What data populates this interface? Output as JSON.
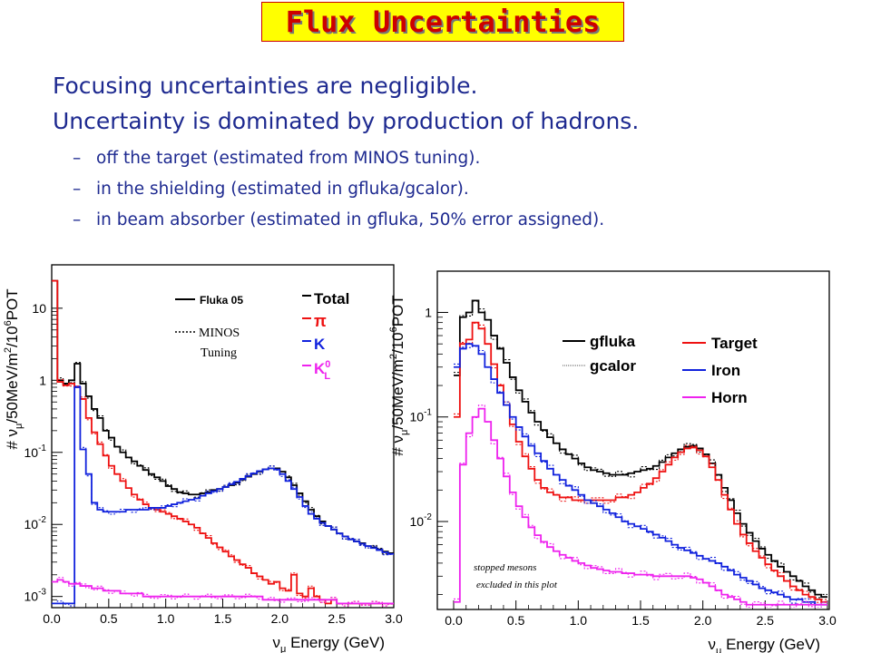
{
  "title": "Flux Uncertainties",
  "bullets": {
    "main": [
      "Focusing uncertainties are negligible.",
      "Uncertainty is dominated by production of hadrons."
    ],
    "sub": [
      "off the target (estimated from MINOS tuning).",
      "in the shielding (estimated in gfluka/gcalor).",
      "in beam absorber (estimated in gfluka, 50% error assigned)."
    ],
    "dash": "–"
  },
  "colors": {
    "total": "#000000",
    "pion": "#ee1111",
    "kaon": "#1122dd",
    "k0l": "#ee22ee",
    "target": "#ee1111",
    "iron": "#1122dd",
    "horn": "#ee22ee"
  },
  "chart_data": [
    {
      "type": "line",
      "xlabel": "νμ Energy (GeV)",
      "ylabel": "# νμ/50MeV/m²/10⁶POT",
      "y_log": true,
      "xlim": [
        0.0,
        3.0
      ],
      "ylim": [
        0.0007,
        40
      ],
      "x_ticks": [
        "0.0",
        "0.5",
        "1.0",
        "1.5",
        "2.0",
        "2.5",
        "3.0"
      ],
      "y_ticks": [
        "10",
        "1",
        "10⁻¹",
        "10⁻²",
        "10⁻³"
      ],
      "legend_style": {
        "solid": "Fluka 05",
        "dotted": "MINOS Tuning"
      },
      "legend": [
        "Total",
        "π",
        "K",
        "K⁰L"
      ],
      "x": [
        0.025,
        0.075,
        0.125,
        0.175,
        0.225,
        0.275,
        0.325,
        0.375,
        0.425,
        0.475,
        0.525,
        0.575,
        0.625,
        0.675,
        0.725,
        0.775,
        0.825,
        0.875,
        0.925,
        0.975,
        1.025,
        1.075,
        1.125,
        1.175,
        1.225,
        1.275,
        1.325,
        1.375,
        1.425,
        1.475,
        1.525,
        1.575,
        1.625,
        1.675,
        1.725,
        1.775,
        1.825,
        1.875,
        1.925,
        1.975,
        2.025,
        2.075,
        2.125,
        2.175,
        2.225,
        2.275,
        2.325,
        2.375,
        2.425,
        2.475,
        2.525,
        2.575,
        2.625,
        2.675,
        2.725,
        2.775,
        2.825,
        2.875,
        2.925,
        2.975
      ],
      "series": [
        {
          "name": "Total",
          "values": [
            24,
            1.0,
            0.9,
            1.0,
            1.7,
            0.9,
            0.6,
            0.4,
            0.3,
            0.2,
            0.16,
            0.12,
            0.1,
            0.085,
            0.075,
            0.065,
            0.057,
            0.05,
            0.045,
            0.04,
            0.034,
            0.031,
            0.028,
            0.027,
            0.026,
            0.026,
            0.027,
            0.028,
            0.03,
            0.031,
            0.033,
            0.035,
            0.038,
            0.042,
            0.046,
            0.05,
            0.054,
            0.058,
            0.06,
            0.06,
            0.054,
            0.045,
            0.035,
            0.027,
            0.021,
            0.016,
            0.013,
            0.011,
            0.0095,
            0.0085,
            0.0075,
            0.0068,
            0.0062,
            0.0058,
            0.0055,
            0.005,
            0.0048,
            0.0045,
            0.0042,
            0.004
          ]
        },
        {
          "name": "π",
          "values": [
            24,
            0.95,
            0.85,
            0.9,
            0.8,
            0.55,
            0.3,
            0.19,
            0.13,
            0.09,
            0.065,
            0.05,
            0.04,
            0.032,
            0.026,
            0.022,
            0.019,
            0.017,
            0.016,
            0.015,
            0.014,
            0.013,
            0.012,
            0.011,
            0.01,
            0.009,
            0.0075,
            0.0065,
            0.0055,
            0.0048,
            0.0042,
            0.0036,
            0.0032,
            0.0028,
            0.0025,
            0.0021,
            0.0019,
            0.0017,
            0.0015,
            0.0016,
            0.0013,
            0.0012,
            0.002,
            0.0011,
            0.001,
            0.0013,
            0.001,
            0.0009,
            0.0008,
            0.0009,
            0.0008,
            0.0008,
            0.0008,
            0.0008,
            0.0008,
            0.0008,
            0.0008,
            0.0008,
            0.0008,
            0.0008
          ]
        },
        {
          "name": "K",
          "values": [
            0.0008,
            0.0008,
            0.0008,
            0.0008,
            0.8,
            0.11,
            0.05,
            0.02,
            0.016,
            0.015,
            0.015,
            0.015,
            0.015,
            0.016,
            0.016,
            0.016,
            0.016,
            0.017,
            0.017,
            0.017,
            0.018,
            0.019,
            0.02,
            0.021,
            0.022,
            0.023,
            0.025,
            0.027,
            0.029,
            0.031,
            0.033,
            0.036,
            0.039,
            0.043,
            0.047,
            0.051,
            0.055,
            0.058,
            0.06,
            0.058,
            0.05,
            0.04,
            0.031,
            0.024,
            0.018,
            0.014,
            0.012,
            0.0105,
            0.0095,
            0.0085,
            0.0075,
            0.0068,
            0.0062,
            0.0058,
            0.0054,
            0.005,
            0.0047,
            0.0044,
            0.0041,
            0.0039
          ]
        },
        {
          "name": "K⁰L",
          "values": [
            0.0016,
            0.0017,
            0.0016,
            0.0015,
            0.0015,
            0.0014,
            0.0014,
            0.0013,
            0.0013,
            0.0012,
            0.0012,
            0.0012,
            0.0011,
            0.0011,
            0.0011,
            0.0011,
            0.001,
            0.001,
            0.001,
            0.001,
            0.001,
            0.001,
            0.001,
            0.001,
            0.001,
            0.001,
            0.001,
            0.001,
            0.001,
            0.001,
            0.001,
            0.001,
            0.001,
            0.001,
            0.001,
            0.001,
            0.001,
            0.0009,
            0.0009,
            0.0009,
            0.0009,
            0.0009,
            0.0009,
            0.0009,
            0.0009,
            0.0009,
            0.0009,
            0.0009,
            0.0009,
            0.0009,
            0.0008,
            0.0008,
            0.0008,
            0.0008,
            0.0008,
            0.0008,
            0.0008,
            0.0008,
            0.0008,
            0.0008
          ]
        }
      ]
    },
    {
      "type": "line",
      "xlabel": "νμ Energy (GeV)",
      "ylabel": "# νμ/50MeV/m²/10⁶POT",
      "y_log": true,
      "xlim": [
        0.0,
        3.0
      ],
      "ylim": [
        0.0015,
        2.2
      ],
      "x_ticks": [
        "0.0",
        "0.5",
        "1.0",
        "1.5",
        "2.0",
        "2.5",
        "3.0"
      ],
      "y_ticks": [
        "1",
        "10⁻¹",
        "10⁻²"
      ],
      "legend_style": {
        "solid": "gfluka",
        "dotted": "gcalor"
      },
      "legend": [
        "Target",
        "Iron",
        "Horn"
      ],
      "annotation": [
        "stopped mesons",
        "excluded in this plot"
      ],
      "x": [
        0.025,
        0.075,
        0.125,
        0.175,
        0.225,
        0.275,
        0.325,
        0.375,
        0.425,
        0.475,
        0.525,
        0.575,
        0.625,
        0.675,
        0.725,
        0.775,
        0.825,
        0.875,
        0.925,
        0.975,
        1.025,
        1.075,
        1.125,
        1.175,
        1.225,
        1.275,
        1.325,
        1.375,
        1.425,
        1.475,
        1.525,
        1.575,
        1.625,
        1.675,
        1.725,
        1.775,
        1.825,
        1.875,
        1.925,
        1.975,
        2.025,
        2.075,
        2.125,
        2.175,
        2.225,
        2.275,
        2.325,
        2.375,
        2.425,
        2.475,
        2.525,
        2.575,
        2.625,
        2.675,
        2.725,
        2.775,
        2.825,
        2.875,
        2.925,
        2.975
      ],
      "series": [
        {
          "name": "Total",
          "values": [
            0.25,
            0.9,
            1.0,
            1.3,
            1.0,
            0.85,
            0.6,
            0.45,
            0.33,
            0.24,
            0.18,
            0.14,
            0.11,
            0.09,
            0.075,
            0.064,
            0.056,
            0.049,
            0.044,
            0.04,
            0.036,
            0.033,
            0.031,
            0.03,
            0.029,
            0.028,
            0.028,
            0.028,
            0.029,
            0.03,
            0.031,
            0.032,
            0.034,
            0.037,
            0.041,
            0.045,
            0.049,
            0.052,
            0.053,
            0.05,
            0.044,
            0.036,
            0.028,
            0.021,
            0.016,
            0.012,
            0.0095,
            0.0078,
            0.0065,
            0.0055,
            0.0048,
            0.0042,
            0.0037,
            0.0033,
            0.003,
            0.0027,
            0.0024,
            0.0022,
            0.002,
            0.0019
          ]
        },
        {
          "name": "Target",
          "values": [
            0.1,
            0.5,
            0.55,
            0.8,
            0.7,
            0.5,
            0.32,
            0.2,
            0.13,
            0.085,
            0.058,
            0.042,
            0.032,
            0.025,
            0.021,
            0.019,
            0.018,
            0.017,
            0.017,
            0.016,
            0.016,
            0.016,
            0.016,
            0.016,
            0.016,
            0.016,
            0.017,
            0.017,
            0.018,
            0.019,
            0.021,
            0.023,
            0.026,
            0.03,
            0.035,
            0.041,
            0.046,
            0.05,
            0.051,
            0.048,
            0.042,
            0.033,
            0.025,
            0.018,
            0.013,
            0.0095,
            0.0075,
            0.0062,
            0.0052,
            0.0045,
            0.0039,
            0.0034,
            0.003,
            0.0027,
            0.0024,
            0.0022,
            0.002,
            0.0019,
            0.0018,
            0.0017
          ]
        },
        {
          "name": "Iron",
          "values": [
            0.3,
            0.45,
            0.5,
            0.48,
            0.4,
            0.3,
            0.23,
            0.17,
            0.13,
            0.1,
            0.08,
            0.065,
            0.053,
            0.045,
            0.038,
            0.032,
            0.028,
            0.025,
            0.022,
            0.02,
            0.018,
            0.016,
            0.015,
            0.014,
            0.013,
            0.012,
            0.011,
            0.01,
            0.0095,
            0.009,
            0.0085,
            0.008,
            0.0075,
            0.007,
            0.0065,
            0.006,
            0.0056,
            0.0053,
            0.005,
            0.0047,
            0.0044,
            0.0042,
            0.004,
            0.0037,
            0.0034,
            0.0031,
            0.0029,
            0.0027,
            0.0025,
            0.0023,
            0.0022,
            0.0021,
            0.002,
            0.0019,
            0.0018,
            0.0018,
            0.0017,
            0.0017,
            0.0016,
            0.0016
          ]
        },
        {
          "name": "Horn",
          "values": [
            0.0017,
            0.035,
            0.07,
            0.1,
            0.12,
            0.09,
            0.06,
            0.04,
            0.027,
            0.019,
            0.014,
            0.011,
            0.0088,
            0.0074,
            0.0064,
            0.0057,
            0.0052,
            0.0048,
            0.0045,
            0.0042,
            0.004,
            0.0038,
            0.0036,
            0.0035,
            0.0034,
            0.0033,
            0.0033,
            0.0032,
            0.0032,
            0.0031,
            0.0031,
            0.0031,
            0.003,
            0.003,
            0.003,
            0.003,
            0.003,
            0.003,
            0.0029,
            0.0028,
            0.0026,
            0.0024,
            0.0022,
            0.002,
            0.0019,
            0.0018,
            0.0017,
            0.0016,
            0.0016,
            0.0016,
            0.0016,
            0.0016,
            0.0016,
            0.0016,
            0.0016,
            0.0016,
            0.0016,
            0.0016,
            0.0016,
            0.0016
          ]
        }
      ]
    }
  ]
}
